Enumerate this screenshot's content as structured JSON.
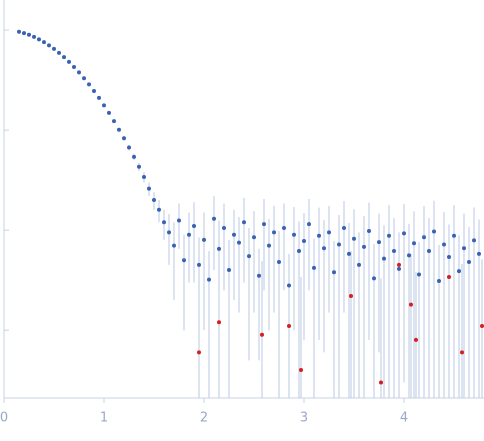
{
  "chart_data": {
    "type": "scatter",
    "log_y": true,
    "xlim": [
      0,
      4.8
    ],
    "xticks": [
      0,
      1,
      2,
      3,
      4
    ],
    "ylim": [
      0.00021,
      2
    ],
    "yticks": [
      0.001,
      0.01,
      0.1,
      1
    ],
    "error_color": "#b9c9e5",
    "series": [
      {
        "color": "#3a62b3",
        "x": [
          0.15,
          0.2,
          0.25,
          0.3,
          0.35,
          0.4,
          0.45,
          0.5,
          0.55,
          0.6,
          0.65,
          0.7,
          0.75,
          0.8,
          0.85,
          0.9,
          0.95,
          1.0,
          1.05,
          1.1,
          1.15,
          1.2,
          1.25,
          1.3,
          1.35,
          1.4,
          1.45,
          1.5,
          1.55,
          1.6,
          1.65,
          1.7,
          1.75,
          1.8,
          1.85,
          1.9,
          1.95,
          2.0,
          2.05,
          2.1,
          2.15,
          2.2,
          2.25,
          2.3,
          2.35,
          2.4,
          2.45,
          2.5,
          2.55,
          2.6,
          2.65,
          2.7,
          2.75,
          2.8,
          2.85,
          2.9,
          2.95,
          3.0,
          3.05,
          3.1,
          3.15,
          3.2,
          3.25,
          3.3,
          3.35,
          3.4,
          3.45,
          3.5,
          3.55,
          3.6,
          3.65,
          3.7,
          3.75,
          3.8,
          3.85,
          3.9,
          3.95,
          4.0,
          4.05,
          4.1,
          4.15,
          4.2,
          4.25,
          4.3,
          4.35,
          4.4,
          4.45,
          4.5,
          4.55,
          4.6,
          4.65,
          4.7,
          4.75
        ],
        "values": [
          0.962,
          0.933,
          0.898,
          0.856,
          0.809,
          0.758,
          0.704,
          0.649,
          0.592,
          0.537,
          0.481,
          0.428,
          0.378,
          0.33,
          0.287,
          0.246,
          0.21,
          0.177,
          0.149,
          0.123,
          0.101,
          0.083,
          0.067,
          0.054,
          0.043,
          0.034,
          0.026,
          0.02,
          0.016,
          0.012,
          0.0095,
          0.007,
          0.0125,
          0.005,
          0.009,
          0.011,
          0.0045,
          0.008,
          0.0032,
          0.013,
          0.0065,
          0.0105,
          0.004,
          0.009,
          0.0075,
          0.012,
          0.0055,
          0.0085,
          0.0035,
          0.0115,
          0.007,
          0.0095,
          0.0048,
          0.0105,
          0.0028,
          0.009,
          0.0062,
          0.0078,
          0.0115,
          0.0042,
          0.0088,
          0.0066,
          0.0095,
          0.0038,
          0.0072,
          0.0105,
          0.0058,
          0.0082,
          0.0045,
          0.0068,
          0.0098,
          0.0033,
          0.0076,
          0.0052,
          0.0088,
          0.0062,
          0.0041,
          0.0093,
          0.0056,
          0.0074,
          0.0036,
          0.0085,
          0.0062,
          0.0097,
          0.0031,
          0.0072,
          0.0054,
          0.0088,
          0.0039,
          0.0066,
          0.0048,
          0.0079,
          0.0058
        ],
        "errors": [
          0.005,
          0.005,
          0.005,
          0.005,
          0.005,
          0.005,
          0.005,
          0.005,
          0.005,
          0.005,
          0.005,
          0.004,
          0.004,
          0.004,
          0.004,
          0.004,
          0.004,
          0.004,
          0.004,
          0.004,
          0.004,
          0.004,
          0.004,
          0.004,
          0.004,
          0.004,
          0.004,
          0.004,
          0.004,
          0.004,
          0.005,
          0.005,
          0.006,
          0.004,
          0.006,
          0.008,
          0.004,
          0.007,
          0.003,
          0.009,
          0.006,
          0.008,
          0.004,
          0.007,
          0.006,
          0.009,
          0.005,
          0.007,
          0.003,
          0.009,
          0.006,
          0.008,
          0.005,
          0.008,
          0.003,
          0.008,
          0.006,
          0.007,
          0.009,
          0.004,
          0.008,
          0.006,
          0.008,
          0.004,
          0.007,
          0.009,
          0.006,
          0.008,
          0.005,
          0.007,
          0.009,
          0.004,
          0.007,
          0.006,
          0.009,
          0.007,
          0.005,
          0.009,
          0.006,
          0.008,
          0.004,
          0.009,
          0.007,
          0.01,
          0.004,
          0.008,
          0.006,
          0.009,
          0.005,
          0.008,
          0.006,
          0.009,
          0.007
        ]
      },
      {
        "color": "#d42020",
        "x": [
          1.95,
          2.15,
          2.58,
          2.85,
          2.97,
          3.47,
          3.77,
          3.95,
          4.07,
          4.12,
          4.45,
          4.58,
          4.78
        ],
        "values": [
          0.0006,
          0.0012,
          0.0009,
          0.0011,
          0.0004,
          0.0022,
          0.0003,
          0.0045,
          0.0018,
          0.0008,
          0.0034,
          0.0006,
          0.0011
        ],
        "errors": [
          0.003,
          0.003,
          0.004,
          0.004,
          0.003,
          0.004,
          0.003,
          0.005,
          0.004,
          0.003,
          0.005,
          0.004,
          0.004
        ]
      }
    ]
  }
}
